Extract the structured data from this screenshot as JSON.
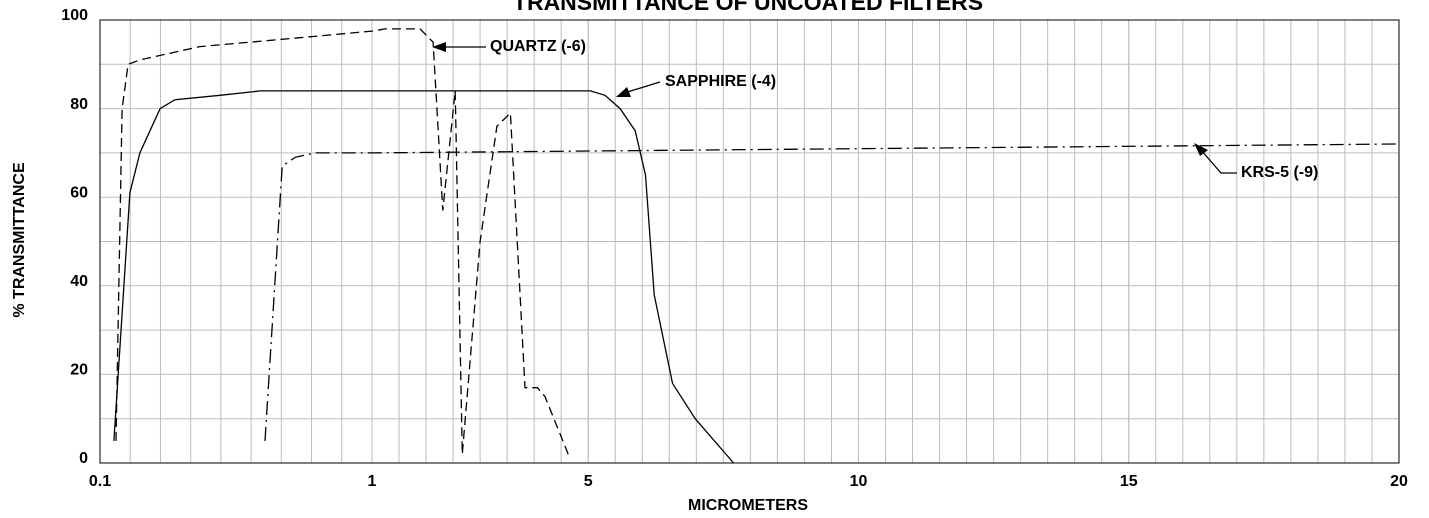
{
  "chart_data": {
    "type": "line",
    "title": "TRANSMITTANCE OF UNCOATED FILTERS",
    "xlabel": "MICROMETERS",
    "ylabel": "% TRANSMITTANCE",
    "xlim": [
      0.1,
      20
    ],
    "xticks": [
      0.1,
      1,
      5,
      10,
      15,
      20
    ],
    "ylim": [
      0,
      100
    ],
    "yticks": [
      0,
      20,
      40,
      60,
      80,
      100
    ],
    "grid": true,
    "series": [
      {
        "name": "QUARTZ (-6)",
        "color": "#000000",
        "dash": "dashed",
        "x": [
          0.153,
          0.173,
          0.193,
          0.232,
          0.431,
          0.762,
          1,
          1.24,
          1.89,
          2.13,
          2.31,
          2.54,
          2.67,
          3.0,
          3.31,
          3.56,
          3.83,
          4.06,
          4.2,
          4.63
        ],
        "values": [
          5,
          80,
          90,
          91,
          94,
          96,
          97.5,
          98,
          98,
          95,
          57,
          84,
          2,
          50,
          76,
          79,
          17,
          17,
          15,
          2
        ]
      },
      {
        "name": "SAPPHIRE (-4)",
        "color": "#000000",
        "dash": "solid",
        "x": [
          0.146,
          0.199,
          0.232,
          0.299,
          0.348,
          0.497,
          0.63,
          1,
          5.04,
          5.31,
          5.59,
          5.87,
          6.06,
          6.22,
          6.56,
          6.98,
          7.69
        ],
        "values": [
          5,
          61,
          70,
          80,
          82,
          83,
          84,
          84,
          84,
          83,
          80,
          75,
          65,
          38,
          18,
          10,
          0
        ]
      },
      {
        "name": "KRS-5 (-9)",
        "color": "#000000",
        "dash": "dashdot",
        "x": [
          0.646,
          0.703,
          0.746,
          0.812,
          1,
          20
        ],
        "values": [
          5,
          67,
          69,
          70,
          70,
          72
        ]
      }
    ]
  }
}
